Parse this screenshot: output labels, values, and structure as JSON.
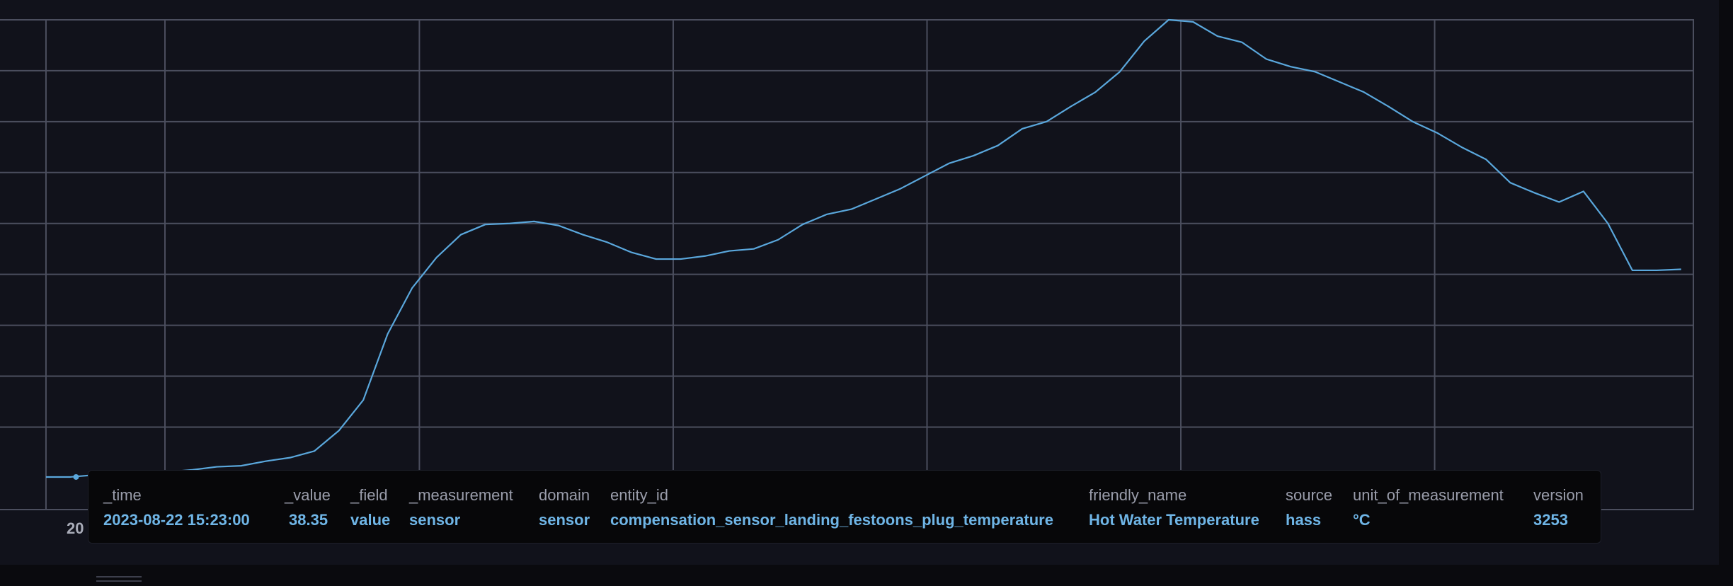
{
  "chart_data": {
    "type": "line",
    "series": [
      {
        "values": [
          [
            0.0,
            0.64
          ],
          [
            0.02,
            0.64
          ],
          [
            0.04,
            0.68
          ],
          [
            0.06,
            0.7
          ],
          [
            0.08,
            0.72
          ],
          [
            0.1,
            0.74
          ],
          [
            0.12,
            0.78
          ],
          [
            0.14,
            0.84
          ],
          [
            0.16,
            0.86
          ],
          [
            0.18,
            0.95
          ],
          [
            0.2,
            1.02
          ],
          [
            0.22,
            1.15
          ],
          [
            0.24,
            1.55
          ],
          [
            0.26,
            2.15
          ],
          [
            0.28,
            3.45
          ],
          [
            0.3,
            4.35
          ],
          [
            0.32,
            4.95
          ],
          [
            0.34,
            5.4
          ],
          [
            0.36,
            5.6
          ],
          [
            0.38,
            5.62
          ],
          [
            0.4,
            5.66
          ],
          [
            0.42,
            5.58
          ],
          [
            0.44,
            5.4
          ],
          [
            0.46,
            5.25
          ],
          [
            0.48,
            5.05
          ],
          [
            0.5,
            4.92
          ],
          [
            0.52,
            4.92
          ],
          [
            0.54,
            4.98
          ],
          [
            0.56,
            5.08
          ],
          [
            0.58,
            5.12
          ],
          [
            0.6,
            5.3
          ],
          [
            0.62,
            5.6
          ],
          [
            0.64,
            5.8
          ],
          [
            0.66,
            5.9
          ],
          [
            0.68,
            6.1
          ],
          [
            0.7,
            6.3
          ],
          [
            0.72,
            6.55
          ],
          [
            0.74,
            6.8
          ],
          [
            0.76,
            6.95
          ],
          [
            0.78,
            7.15
          ],
          [
            0.8,
            7.48
          ],
          [
            0.82,
            7.62
          ],
          [
            0.84,
            7.92
          ],
          [
            0.86,
            8.2
          ],
          [
            0.88,
            8.6
          ],
          [
            0.9,
            9.2
          ],
          [
            0.92,
            9.62
          ],
          [
            0.94,
            9.58
          ],
          [
            0.96,
            9.3
          ],
          [
            0.98,
            9.18
          ],
          [
            1.0,
            8.85
          ],
          [
            1.02,
            8.7
          ],
          [
            1.04,
            8.6
          ],
          [
            1.06,
            8.4
          ],
          [
            1.08,
            8.2
          ],
          [
            1.1,
            7.92
          ],
          [
            1.12,
            7.62
          ],
          [
            1.14,
            7.4
          ],
          [
            1.16,
            7.12
          ],
          [
            1.18,
            6.88
          ],
          [
            1.2,
            6.42
          ],
          [
            1.22,
            6.22
          ],
          [
            1.24,
            6.04
          ],
          [
            1.26,
            6.25
          ],
          [
            1.28,
            5.62
          ],
          [
            1.3,
            4.7
          ],
          [
            1.32,
            4.7
          ],
          [
            1.34,
            4.72
          ]
        ]
      }
    ],
    "grid": true,
    "x_tick_labels": [
      "20"
    ]
  },
  "tooltip": {
    "columns": [
      {
        "header": "_time",
        "value": "2023-08-22 15:23:00"
      },
      {
        "header": "_value",
        "value": "38.35"
      },
      {
        "header": "_field",
        "value": "value"
      },
      {
        "header": "_measurement",
        "value": "sensor"
      },
      {
        "header": "domain",
        "value": "sensor"
      },
      {
        "header": "entity_id",
        "value": "compensation_sensor_landing_festoons_plug_temperature"
      },
      {
        "header": "friendly_name",
        "value": "Hot Water Temperature"
      },
      {
        "header": "source",
        "value": "hass"
      },
      {
        "header": "unit_of_measurement",
        "value": "°C"
      },
      {
        "header": "version",
        "value": "3253"
      }
    ]
  },
  "colors": {
    "background": "#11121b",
    "grid": "#4b4e5e",
    "series": "#5aa7dc",
    "tooltip_background": "#070709",
    "tooltip_header": "#9a9dab",
    "tooltip_value": "#6fb5e6"
  }
}
